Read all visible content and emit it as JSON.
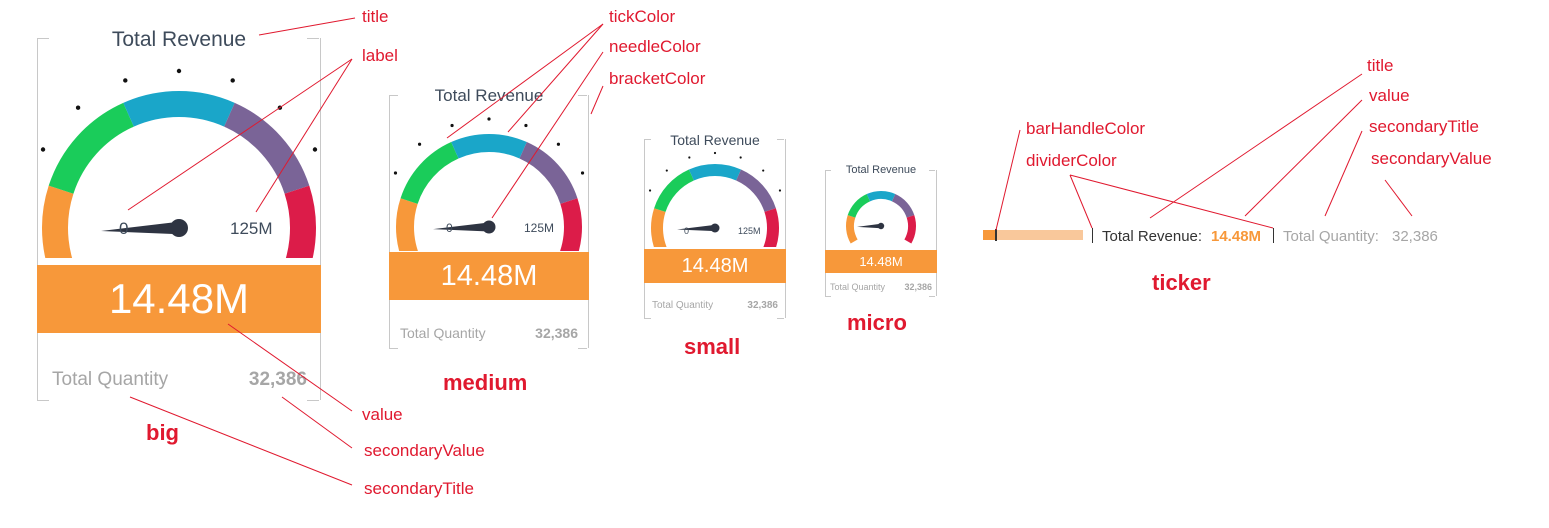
{
  "gauge": {
    "title": "Total Revenue",
    "value": "14.48M",
    "min_label": "0",
    "max_label": "125M",
    "secondary_title": "Total Quantity",
    "secondary_value": "32,386",
    "min": 0,
    "max": 125,
    "current": 14.48,
    "band_colors": [
      "#f7983a",
      "#1acc5a",
      "#1aa6c9",
      "#7a6497",
      "#dc1c49"
    ]
  },
  "variants": {
    "big": "big",
    "medium": "medium",
    "small": "small",
    "micro": "micro",
    "ticker": "ticker"
  },
  "ticker": {
    "title": "Total Revenue:",
    "value": "14.48M",
    "secondary_title": "Total Quantity:",
    "secondary_value": "32,386",
    "progress": 0.1158
  },
  "annotations": {
    "title": "title",
    "label": "label",
    "tick_color": "tickColor",
    "needle_color": "needleColor",
    "bracket_color": "bracketColor",
    "value": "value",
    "secondary_value": "secondaryValue",
    "secondary_title": "secondaryTitle",
    "bar_handle_color": "barHandleColor",
    "divider_color": "dividerColor"
  },
  "colors": {
    "annotation": "#e0192f",
    "value_band": "#f7983a",
    "needle": "#2e3442",
    "tick": "#111111",
    "bracket": "#c8c8c8",
    "ticker_bar": "#f9c89b",
    "ticker_handle": "#333333"
  }
}
